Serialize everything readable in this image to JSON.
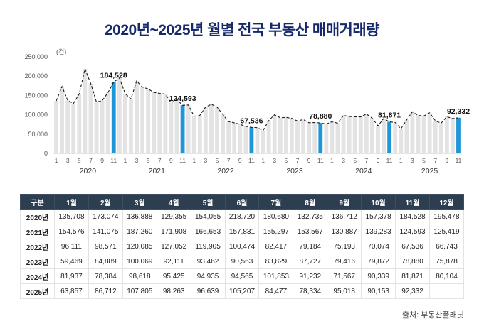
{
  "title": "2020년~2025년 월별 전국 부동산 매매거래량",
  "source": "출처: 부동산플래닛",
  "chart_data": {
    "type": "bar",
    "title": "2020년~2025년 월별 전국 부동산 매매거래량",
    "unit_label": "(건)",
    "ylim": [
      0,
      250000
    ],
    "yticks": [
      "0",
      "50,000",
      "100,000",
      "150,000",
      "200,000",
      "250,000"
    ],
    "month_ticks": [
      "1",
      "3",
      "5",
      "7",
      "9",
      "11"
    ],
    "years": [
      "2020",
      "2021",
      "2022",
      "2023",
      "2024",
      "2025"
    ],
    "highlight_month_index": 10,
    "bar_color": "#e3e3e3",
    "highlight_color": "#1e96d7",
    "trend_line_style": "dashed",
    "legend": "none",
    "grid": "off",
    "series": [
      {
        "name": "2020년",
        "values": [
          135708,
          173074,
          136888,
          129355,
          154055,
          218720,
          180680,
          132735,
          136712,
          157378,
          184528,
          195478
        ]
      },
      {
        "name": "2021년",
        "values": [
          154576,
          141075,
          187260,
          171908,
          166653,
          157831,
          155297,
          153567,
          130887,
          139283,
          124593,
          125419
        ]
      },
      {
        "name": "2022년",
        "values": [
          96111,
          98571,
          120085,
          127052,
          119905,
          100474,
          82417,
          79184,
          75193,
          70074,
          67536,
          66743
        ]
      },
      {
        "name": "2023년",
        "values": [
          59469,
          84889,
          100069,
          92111,
          93462,
          90563,
          83829,
          87727,
          79416,
          79872,
          78880,
          75878
        ]
      },
      {
        "name": "2024년",
        "values": [
          81937,
          78384,
          98618,
          95425,
          94935,
          94565,
          101853,
          91232,
          71567,
          90339,
          81871,
          80104
        ]
      },
      {
        "name": "2025년",
        "values": [
          63857,
          86712,
          107805,
          98263,
          96639,
          105207,
          84477,
          78334,
          95018,
          90153,
          92332
        ]
      }
    ],
    "annotations": [
      "184,528",
      "124,593",
      "67,536",
      "78,880",
      "81,871",
      "92,332"
    ]
  },
  "table": {
    "header": [
      "구분",
      "1월",
      "2월",
      "3월",
      "4월",
      "5월",
      "6월",
      "7월",
      "8월",
      "9월",
      "10월",
      "11월",
      "12월"
    ]
  }
}
